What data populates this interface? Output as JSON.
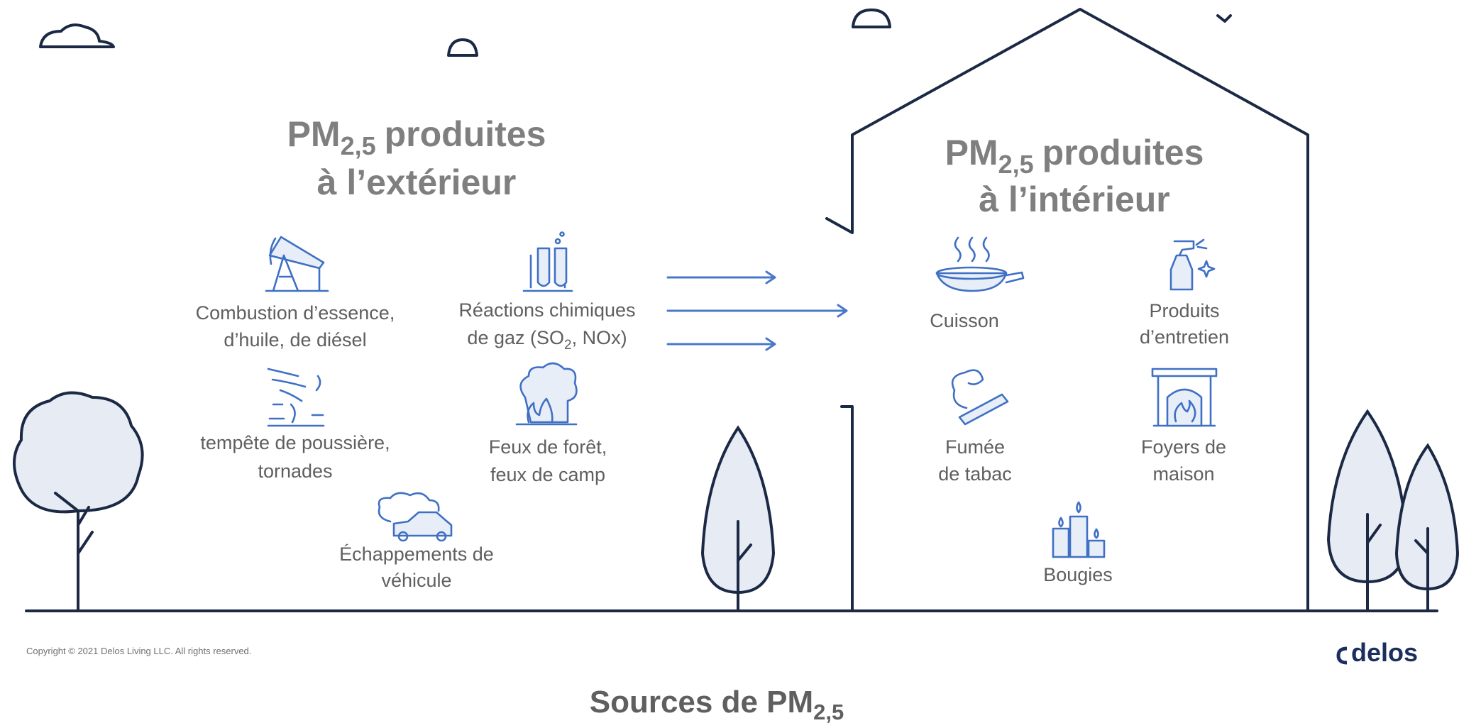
{
  "outdoor": {
    "title": {
      "main": "PM",
      "sub": "2,5",
      "rest": "produites",
      "line2": "à l’extérieur"
    },
    "combustion": [
      "Combustion d’essence,",
      "d’huile, de diésel"
    ],
    "reactions": {
      "line1": "Réactions chimiques",
      "line2_before": "de gaz (SO",
      "line2_sub": "2",
      "line2_after": ", NOx)"
    },
    "storms": [
      "tempête de poussière,",
      "tornades"
    ],
    "fires": [
      "Feux de forêt,",
      "feux de camp"
    ],
    "exhaust": [
      "Échappements de",
      "véhicule"
    ]
  },
  "indoor": {
    "title": {
      "main": "PM",
      "sub": "2,5",
      "rest": "produites",
      "line2": "à l’intérieur"
    },
    "cooking": "Cuisson",
    "cleaning": [
      "Produits",
      "d’entretien"
    ],
    "smoke": [
      "Fumée",
      "de tabac"
    ],
    "fireplaces": [
      "Foyers de",
      "maison"
    ],
    "candles": "Bougies"
  },
  "footer": {
    "copyright": "Copyright © 2021 Delos Living LLC. All rights reserved.",
    "logo": "delos"
  },
  "caption": {
    "main": "Sources de PM",
    "sub": "2,5"
  }
}
